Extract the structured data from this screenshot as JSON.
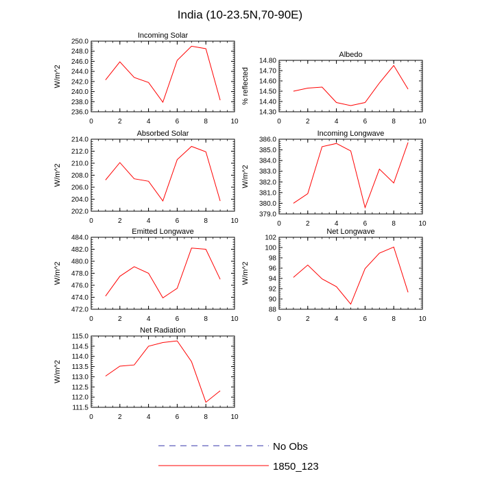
{
  "figure": {
    "title": "India (10-23.5N,70-90E)"
  },
  "legend": {
    "items": [
      {
        "label": "No Obs",
        "color": "#3333aa",
        "dash": true
      },
      {
        "label": "1850_123",
        "color": "#ff0000",
        "dash": false
      }
    ]
  },
  "chart_data": [
    {
      "type": "line",
      "title": "Incoming Solar",
      "ylabel": "W/m^2",
      "xlim": [
        0,
        10
      ],
      "ylim": [
        236,
        250
      ],
      "xticks": [
        0,
        2,
        4,
        6,
        8,
        10
      ],
      "yticks": [
        "236.0",
        "238.0",
        "240.0",
        "242.0",
        "244.0",
        "246.0",
        "248.0",
        "250.0"
      ],
      "series": [
        {
          "color": "#ff0000",
          "x": [
            1,
            2,
            3,
            4,
            5,
            6,
            7,
            8,
            9
          ],
          "y": [
            242.3,
            245.9,
            242.8,
            241.8,
            237.9,
            246.2,
            249.0,
            248.5,
            238.3
          ]
        }
      ]
    },
    {
      "type": "line",
      "title": "Albedo",
      "ylabel": "% reflected",
      "xlim": [
        0,
        10
      ],
      "ylim": [
        14.3,
        14.8
      ],
      "xticks": [
        0,
        2,
        4,
        6,
        8,
        10
      ],
      "yticks": [
        "14.30",
        "14.40",
        "14.50",
        "14.60",
        "14.70",
        "14.80"
      ],
      "series": [
        {
          "color": "#ff0000",
          "x": [
            1,
            2,
            3,
            4,
            5,
            6,
            7,
            8,
            9
          ],
          "y": [
            14.5,
            14.53,
            14.54,
            14.39,
            14.36,
            14.39,
            14.58,
            14.75,
            14.52
          ]
        }
      ]
    },
    {
      "type": "line",
      "title": "Absorbed Solar",
      "ylabel": "W/m^2",
      "xlim": [
        0,
        10
      ],
      "ylim": [
        202,
        214
      ],
      "xticks": [
        0,
        2,
        4,
        6,
        8,
        10
      ],
      "yticks": [
        "202.0",
        "204.0",
        "206.0",
        "208.0",
        "210.0",
        "212.0",
        "214.0"
      ],
      "series": [
        {
          "color": "#ff0000",
          "x": [
            1,
            2,
            3,
            4,
            5,
            6,
            7,
            8,
            9
          ],
          "y": [
            207.2,
            210.1,
            207.4,
            207.0,
            203.7,
            210.6,
            212.8,
            211.9,
            203.7
          ]
        }
      ]
    },
    {
      "type": "line",
      "title": "Incoming Longwave",
      "ylabel": "W/m^2",
      "xlim": [
        0,
        10
      ],
      "ylim": [
        379,
        386
      ],
      "xticks": [
        0,
        2,
        4,
        6,
        8,
        10
      ],
      "yticks": [
        "379.0",
        "380.0",
        "381.0",
        "382.0",
        "383.0",
        "384.0",
        "385.0",
        "386.0"
      ],
      "series": [
        {
          "color": "#ff0000",
          "x": [
            1,
            2,
            3,
            4,
            5,
            6,
            7,
            8,
            9
          ],
          "y": [
            380.0,
            380.9,
            385.3,
            385.6,
            384.9,
            379.6,
            383.2,
            381.9,
            385.7
          ]
        }
      ]
    },
    {
      "type": "line",
      "title": "Emitted Longwave",
      "ylabel": "W/m^2",
      "xlim": [
        0,
        10
      ],
      "ylim": [
        472,
        484
      ],
      "xticks": [
        0,
        2,
        4,
        6,
        8,
        10
      ],
      "yticks": [
        "472.0",
        "474.0",
        "476.0",
        "478.0",
        "480.0",
        "482.0",
        "484.0"
      ],
      "series": [
        {
          "color": "#ff0000",
          "x": [
            1,
            2,
            3,
            4,
            5,
            6,
            7,
            8,
            9
          ],
          "y": [
            474.2,
            477.5,
            479.1,
            478.0,
            473.9,
            475.5,
            482.2,
            482.0,
            477.0
          ]
        }
      ]
    },
    {
      "type": "line",
      "title": "Net Longwave",
      "ylabel": "W/m^2",
      "xlim": [
        0,
        10
      ],
      "ylim": [
        88,
        102
      ],
      "xticks": [
        0,
        2,
        4,
        6,
        8,
        10
      ],
      "yticks": [
        "88",
        "90",
        "92",
        "94",
        "96",
        "98",
        "100",
        "102"
      ],
      "series": [
        {
          "color": "#ff0000",
          "x": [
            1,
            2,
            3,
            4,
            5,
            6,
            7,
            8,
            9
          ],
          "y": [
            94.2,
            96.6,
            93.9,
            92.4,
            89.0,
            95.9,
            98.9,
            100.1,
            91.3
          ]
        }
      ]
    },
    {
      "type": "line",
      "title": "Net Radiation",
      "ylabel": "W/m^2",
      "xlim": [
        0,
        10
      ],
      "ylim": [
        111.5,
        115.0
      ],
      "xticks": [
        0,
        2,
        4,
        6,
        8,
        10
      ],
      "yticks": [
        "111.5",
        "112.0",
        "112.5",
        "113.0",
        "113.5",
        "114.0",
        "114.5",
        "115.0"
      ],
      "series": [
        {
          "color": "#ff0000",
          "x": [
            1,
            2,
            3,
            4,
            5,
            6,
            7,
            8,
            9
          ],
          "y": [
            113.03,
            113.52,
            113.58,
            114.5,
            114.68,
            114.76,
            113.74,
            111.75,
            112.31
          ]
        }
      ]
    }
  ]
}
